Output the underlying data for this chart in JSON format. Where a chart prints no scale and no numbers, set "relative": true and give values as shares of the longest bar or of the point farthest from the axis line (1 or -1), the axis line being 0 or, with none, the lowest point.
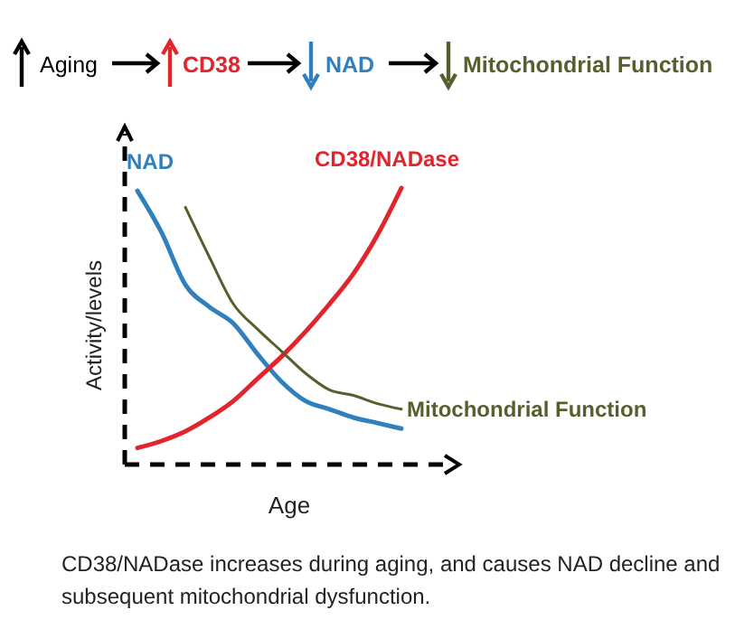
{
  "chart_data": {
    "type": "line",
    "relative": true,
    "xlabel": "Age",
    "ylabel": "Activity/levels",
    "categories": [
      null,
      null,
      null,
      null,
      null,
      null,
      null,
      null,
      null,
      null,
      null,
      null
    ],
    "series": [
      {
        "name": "NAD",
        "color": "#2f80bd",
        "values": [
          0.99,
          0.84,
          0.65,
          0.57,
          0.51,
          0.4,
          0.3,
          0.23,
          0.2,
          0.17,
          0.15,
          0.13
        ]
      },
      {
        "name": "CD38/NADase",
        "color": "#e2242c",
        "values": [
          0.06,
          0.085,
          0.12,
          0.17,
          0.23,
          0.31,
          0.39,
          0.48,
          0.58,
          0.69,
          0.83,
          1.0
        ]
      },
      {
        "name": "Mitochondrial Function",
        "color": "#56602f",
        "values": [
          null,
          null,
          0.93,
          0.75,
          0.58,
          0.49,
          0.41,
          0.33,
          0.27,
          0.25,
          0.22,
          0.2
        ]
      }
    ],
    "annotations": [
      "Aging",
      "CD38",
      "NAD",
      "Mitochondrial Function",
      "CD38/NADase increases during aging, and causes NAD decline and subsequent mitochondrial dysfunction."
    ],
    "legend": false,
    "grid": false,
    "marker": "none",
    "line_style": "solid"
  }
}
